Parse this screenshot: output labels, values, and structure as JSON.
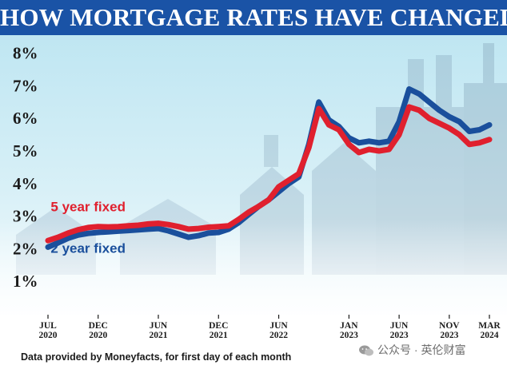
{
  "title": "HOW MORTGAGE RATES HAVE CHANGED",
  "source_note": "Data provided by Moneyfacts, for first day of each month",
  "watermark": "公众号 · 英伦财富",
  "colors": {
    "header_bg": "#1a53a6",
    "five_year": "#e0202e",
    "two_year": "#1a4f9c"
  },
  "chart_data": {
    "type": "line",
    "title": "HOW MORTGAGE RATES HAVE CHANGED",
    "xlabel": "",
    "ylabel": "",
    "ylim": [
      0,
      8.6
    ],
    "grid": false,
    "legend": "inline labels",
    "y_ticks": [
      "1%",
      "2%",
      "3%",
      "4%",
      "5%",
      "6%",
      "7%",
      "8%"
    ],
    "x_ticks": [
      {
        "month": "2020-07",
        "label": [
          "JUL",
          "2020"
        ]
      },
      {
        "month": "2020-12",
        "label": [
          "DEC",
          "2020"
        ]
      },
      {
        "month": "2021-06",
        "label": [
          "JUN",
          "2021"
        ]
      },
      {
        "month": "2021-12",
        "label": [
          "DEC",
          "2021"
        ]
      },
      {
        "month": "2022-06",
        "label": [
          "JUN",
          "2022"
        ]
      },
      {
        "month": "2023-01",
        "label": [
          "JAN",
          "2023"
        ]
      },
      {
        "month": "2023-06",
        "label": [
          "JUN",
          "2023"
        ]
      },
      {
        "month": "2023-11",
        "label": [
          "NOV",
          "2023"
        ]
      },
      {
        "month": "2024-03",
        "label": [
          "MAR",
          "2024"
        ]
      }
    ],
    "series": [
      {
        "name": "5 year fixed",
        "points": [
          [
            "2020-07",
            2.25
          ],
          [
            "2020-08",
            2.35
          ],
          [
            "2020-09",
            2.48
          ],
          [
            "2020-10",
            2.58
          ],
          [
            "2020-11",
            2.65
          ],
          [
            "2020-12",
            2.68
          ],
          [
            "2021-01",
            2.67
          ],
          [
            "2021-02",
            2.68
          ],
          [
            "2021-03",
            2.7
          ],
          [
            "2021-04",
            2.72
          ],
          [
            "2021-05",
            2.76
          ],
          [
            "2021-06",
            2.78
          ],
          [
            "2021-07",
            2.74
          ],
          [
            "2021-08",
            2.68
          ],
          [
            "2021-09",
            2.6
          ],
          [
            "2021-10",
            2.62
          ],
          [
            "2021-11",
            2.66
          ],
          [
            "2021-12",
            2.68
          ],
          [
            "2022-01",
            2.7
          ],
          [
            "2022-02",
            2.9
          ],
          [
            "2022-03",
            3.12
          ],
          [
            "2022-04",
            3.3
          ],
          [
            "2022-05",
            3.5
          ],
          [
            "2022-06",
            3.9
          ],
          [
            "2022-07",
            4.1
          ],
          [
            "2022-08",
            4.3
          ],
          [
            "2022-09",
            5.1
          ],
          [
            "2022-10",
            6.3
          ],
          [
            "2022-11",
            5.8
          ],
          [
            "2022-12",
            5.65
          ],
          [
            "2023-01",
            5.2
          ],
          [
            "2023-02",
            4.95
          ],
          [
            "2023-03",
            5.05
          ],
          [
            "2023-04",
            5.0
          ],
          [
            "2023-05",
            5.05
          ],
          [
            "2023-06",
            5.5
          ],
          [
            "2023-07",
            6.35
          ],
          [
            "2023-08",
            6.25
          ],
          [
            "2023-09",
            6.0
          ],
          [
            "2023-10",
            5.85
          ],
          [
            "2023-11",
            5.7
          ],
          [
            "2023-12",
            5.5
          ],
          [
            "2024-01",
            5.2
          ],
          [
            "2024-02",
            5.25
          ],
          [
            "2024-03",
            5.35
          ]
        ]
      },
      {
        "name": "2 year fixed",
        "points": [
          [
            "2020-07",
            2.05
          ],
          [
            "2020-08",
            2.18
          ],
          [
            "2020-09",
            2.32
          ],
          [
            "2020-10",
            2.42
          ],
          [
            "2020-11",
            2.47
          ],
          [
            "2020-12",
            2.5
          ],
          [
            "2021-01",
            2.52
          ],
          [
            "2021-02",
            2.54
          ],
          [
            "2021-03",
            2.56
          ],
          [
            "2021-04",
            2.58
          ],
          [
            "2021-05",
            2.6
          ],
          [
            "2021-06",
            2.62
          ],
          [
            "2021-07",
            2.55
          ],
          [
            "2021-08",
            2.45
          ],
          [
            "2021-09",
            2.35
          ],
          [
            "2021-10",
            2.4
          ],
          [
            "2021-11",
            2.48
          ],
          [
            "2021-12",
            2.5
          ],
          [
            "2022-01",
            2.6
          ],
          [
            "2022-02",
            2.8
          ],
          [
            "2022-03",
            3.05
          ],
          [
            "2022-04",
            3.3
          ],
          [
            "2022-05",
            3.5
          ],
          [
            "2022-06",
            3.75
          ],
          [
            "2022-07",
            4.0
          ],
          [
            "2022-08",
            4.2
          ],
          [
            "2022-09",
            5.2
          ],
          [
            "2022-10",
            6.5
          ],
          [
            "2022-11",
            5.95
          ],
          [
            "2022-12",
            5.75
          ],
          [
            "2023-01",
            5.4
          ],
          [
            "2023-02",
            5.25
          ],
          [
            "2023-03",
            5.3
          ],
          [
            "2023-04",
            5.25
          ],
          [
            "2023-05",
            5.3
          ],
          [
            "2023-06",
            5.9
          ],
          [
            "2023-07",
            6.9
          ],
          [
            "2023-08",
            6.75
          ],
          [
            "2023-09",
            6.5
          ],
          [
            "2023-10",
            6.25
          ],
          [
            "2023-11",
            6.05
          ],
          [
            "2023-12",
            5.9
          ],
          [
            "2024-01",
            5.6
          ],
          [
            "2024-02",
            5.65
          ],
          [
            "2024-03",
            5.8
          ]
        ]
      }
    ],
    "series_labels": [
      {
        "text": "5 year fixed",
        "series": "5 year fixed",
        "at": [
          "2020-11",
          3.15
        ]
      },
      {
        "text": "2 year fixed",
        "series": "2 year fixed",
        "at": [
          "2020-11",
          1.88
        ]
      }
    ]
  }
}
